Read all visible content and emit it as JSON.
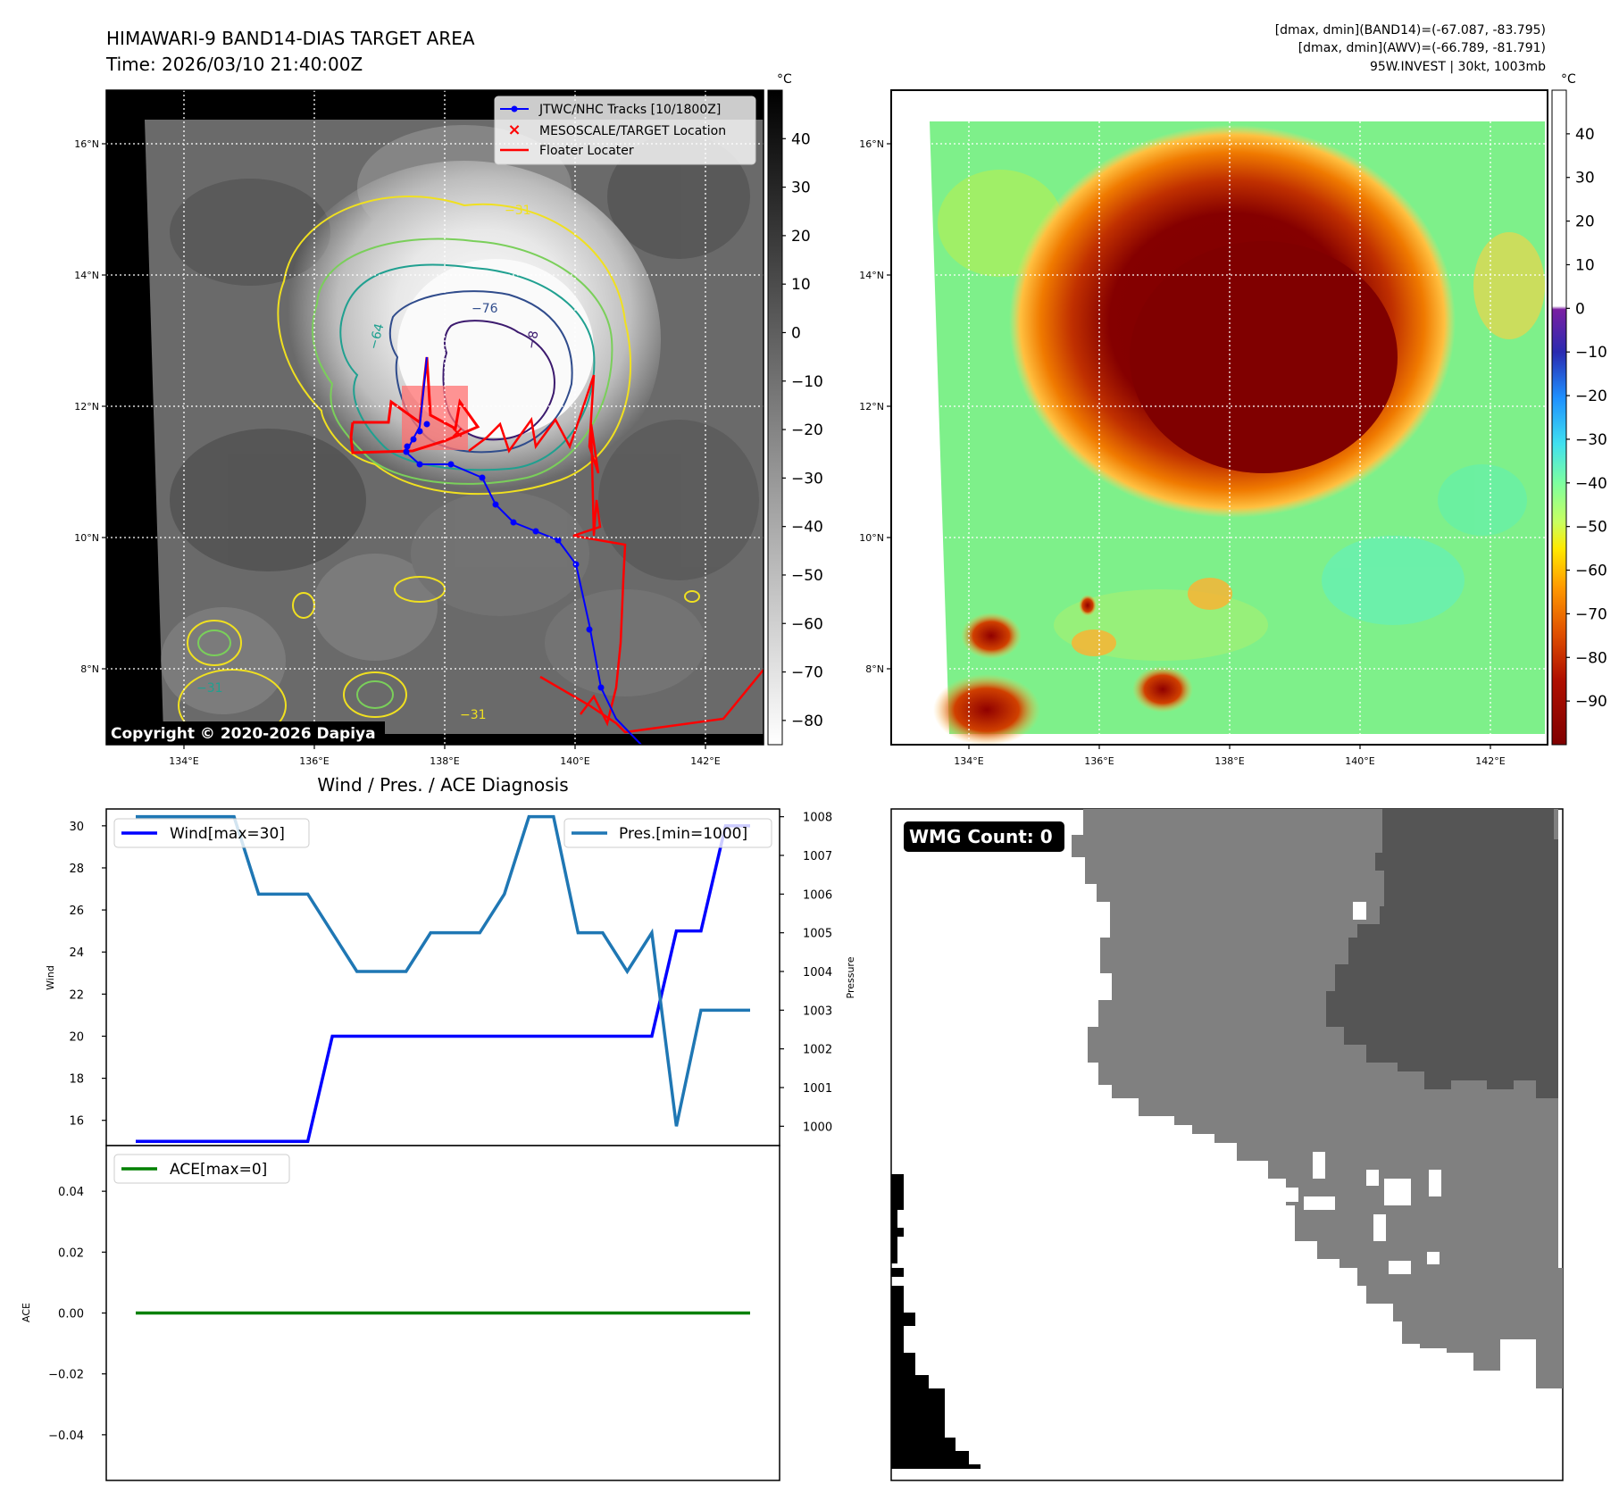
{
  "header": {
    "title_line1": "HIMAWARI-9 BAND14-DIAS TARGET AREA",
    "title_line2": "Time: 2026/03/10 21:40:00Z",
    "info_line1": "[dmax, dmin](BAND14)=(-67.087, -83.795)",
    "info_line2": "[dmax, dmin](AWV)=(-66.789, -81.791)",
    "info_line3": "95W.INVEST | 30kt, 1003mb"
  },
  "map_common": {
    "lon_ticks": [
      "134°E",
      "136°E",
      "138°E",
      "140°E",
      "142°E"
    ],
    "lat_ticks": [
      "16°N",
      "14°N",
      "12°N",
      "10°N",
      "8°N"
    ],
    "lon_range": [
      132.9,
      143.0
    ],
    "lat_range": [
      6.8,
      16.8
    ]
  },
  "ir_panel": {
    "legend": [
      "JTWC/NHC Tracks [10/1800Z]",
      "MESOSCALE/TARGET Location",
      "Floater Locater"
    ],
    "copyright": "Copyright © 2020-2026 Dapiya",
    "contour_labels": [
      "−76",
      "−64",
      "−31",
      "−31",
      "−31",
      "−8"
    ],
    "colorbar_unit": "°C",
    "colorbar_ticks": [
      "40",
      "30",
      "20",
      "10",
      "0",
      "−10",
      "−20",
      "−30",
      "−40",
      "−50",
      "−60",
      "−70",
      "−80"
    ],
    "colorbar_range": [
      -85,
      50
    ],
    "track_color": "#0000ff",
    "target_color": "#ff0000"
  },
  "awv_panel": {
    "colorbar_unit": "°C",
    "colorbar_ticks": [
      "40",
      "30",
      "20",
      "10",
      "0",
      "−10",
      "−20",
      "−30",
      "−40",
      "−50",
      "−60",
      "−70",
      "−80",
      "−90"
    ],
    "colorbar_range": [
      -100,
      50
    ]
  },
  "diag_title": "Wind / Pres. / ACE Diagnosis",
  "chart_data": [
    {
      "type": "line",
      "title": "Wind / Pres. / ACE Diagnosis",
      "ylabel": "Wind",
      "y2label": "Pressure",
      "ylim": [
        14.8,
        30.8
      ],
      "y2lim": [
        999.5,
        1008.2
      ],
      "yticks": [
        "30",
        "28",
        "26",
        "24",
        "22",
        "20",
        "18",
        "16"
      ],
      "y2ticks": [
        "1008",
        "1007",
        "1006",
        "1005",
        "1004",
        "1003",
        "1002",
        "1001",
        "1000"
      ],
      "legend_wind": "Wind[max=30]",
      "legend_pres": "Pres.[min=1000]",
      "series": [
        {
          "name": "Wind[max=30]",
          "color": "#0000ff",
          "x": [
            0,
            1,
            2,
            3,
            4,
            5,
            6,
            7,
            8,
            9,
            10,
            11,
            12,
            13,
            14,
            15,
            16,
            17,
            18,
            19,
            20,
            21,
            22,
            23,
            24,
            25
          ],
          "values": [
            15,
            15,
            15,
            15,
            15,
            15,
            15,
            15,
            20,
            20,
            20,
            20,
            20,
            20,
            20,
            20,
            20,
            20,
            20,
            20,
            20,
            20,
            25,
            25,
            30,
            30
          ]
        },
        {
          "name": "Pres.[min=1000]",
          "color": "#1f77b4",
          "axis": "right",
          "x": [
            0,
            1,
            2,
            3,
            4,
            5,
            6,
            7,
            8,
            9,
            10,
            11,
            12,
            13,
            14,
            15,
            16,
            17,
            18,
            19,
            20,
            21,
            22,
            23,
            24,
            25
          ],
          "values": [
            1008,
            1008,
            1008,
            1008,
            1008,
            1006,
            1006,
            1006,
            1005,
            1004,
            1004,
            1004,
            1005,
            1005,
            1005,
            1006,
            1008,
            1008,
            1005,
            1005,
            1004,
            1005,
            1000,
            1003,
            1003,
            1003
          ]
        }
      ]
    },
    {
      "type": "line",
      "ylabel": "ACE",
      "ylim": [
        -0.055,
        0.055
      ],
      "yticks": [
        "0.04",
        "0.02",
        "0.00",
        "−0.02",
        "−0.04"
      ],
      "legend": "ACE[max=0]",
      "series": [
        {
          "name": "ACE[max=0]",
          "color": "#008000",
          "x": [
            0,
            25
          ],
          "values": [
            0,
            0
          ]
        }
      ]
    }
  ],
  "wmg_panel": {
    "label": "WMG Count: 0"
  }
}
